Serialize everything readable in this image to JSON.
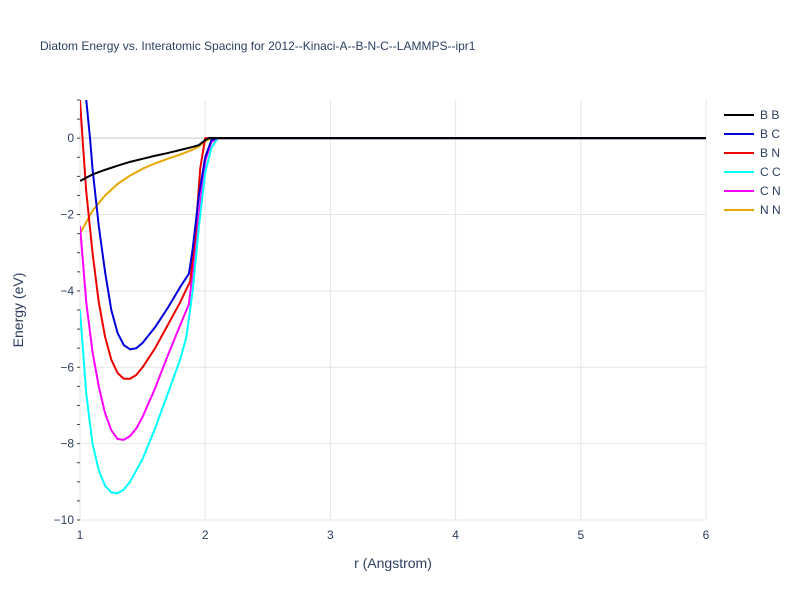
{
  "chart_data": {
    "type": "line",
    "title": "Diatom Energy vs. Interatomic Spacing for 2012--Kinaci-A--B-N-C--LAMMPS--ipr1",
    "xlabel": "r (Angstrom)",
    "ylabel": "Energy (eV)",
    "xlim": [
      1,
      6
    ],
    "ylim": [
      -10,
      1
    ],
    "x_ticks": [
      1,
      2,
      3,
      4,
      5,
      6
    ],
    "y_ticks": [
      -10,
      -8,
      -6,
      -4,
      -2,
      0
    ],
    "x_tick_labels": [
      "1",
      "2",
      "3",
      "4",
      "5",
      "6"
    ],
    "y_tick_labels": [
      "−10",
      "−8",
      "−6",
      "−4",
      "−2",
      "0"
    ],
    "grid": true,
    "legend_position": "right",
    "series": [
      {
        "name": "B B",
        "color": "#000000",
        "points": [
          [
            1.0,
            -1.12
          ],
          [
            1.1,
            -0.95
          ],
          [
            1.2,
            -0.83
          ],
          [
            1.3,
            -0.72
          ],
          [
            1.4,
            -0.62
          ],
          [
            1.5,
            -0.54
          ],
          [
            1.6,
            -0.46
          ],
          [
            1.7,
            -0.39
          ],
          [
            1.8,
            -0.31
          ],
          [
            1.9,
            -0.23
          ],
          [
            1.95,
            -0.18
          ],
          [
            2.0,
            -0.05
          ],
          [
            2.03,
            0.0
          ],
          [
            2.1,
            0.0
          ],
          [
            3.0,
            0.0
          ],
          [
            4.0,
            0.0
          ],
          [
            5.0,
            0.0
          ],
          [
            6.0,
            0.0
          ]
        ]
      },
      {
        "name": "B C",
        "color": "#0000dd",
        "points": [
          [
            1.05,
            1.0
          ],
          [
            1.08,
            0.0
          ],
          [
            1.1,
            -0.8
          ],
          [
            1.15,
            -2.3
          ],
          [
            1.2,
            -3.5
          ],
          [
            1.25,
            -4.5
          ],
          [
            1.3,
            -5.1
          ],
          [
            1.35,
            -5.42
          ],
          [
            1.4,
            -5.53
          ],
          [
            1.45,
            -5.5
          ],
          [
            1.5,
            -5.36
          ],
          [
            1.6,
            -4.95
          ],
          [
            1.7,
            -4.45
          ],
          [
            1.8,
            -3.9
          ],
          [
            1.87,
            -3.55
          ],
          [
            1.9,
            -2.9
          ],
          [
            1.95,
            -1.5
          ],
          [
            2.0,
            -0.5
          ],
          [
            2.05,
            -0.05
          ],
          [
            2.1,
            0.0
          ],
          [
            3.0,
            0.0
          ],
          [
            4.0,
            0.0
          ],
          [
            5.0,
            0.0
          ],
          [
            6.0,
            0.0
          ]
        ]
      },
      {
        "name": "B N",
        "color": "#ee0000",
        "points": [
          [
            1.0,
            1.0
          ],
          [
            1.02,
            0.0
          ],
          [
            1.05,
            -1.4
          ],
          [
            1.1,
            -3.0
          ],
          [
            1.15,
            -4.3
          ],
          [
            1.2,
            -5.2
          ],
          [
            1.25,
            -5.8
          ],
          [
            1.3,
            -6.15
          ],
          [
            1.35,
            -6.3
          ],
          [
            1.4,
            -6.3
          ],
          [
            1.45,
            -6.2
          ],
          [
            1.5,
            -6.0
          ],
          [
            1.6,
            -5.5
          ],
          [
            1.7,
            -4.9
          ],
          [
            1.8,
            -4.3
          ],
          [
            1.88,
            -3.75
          ],
          [
            1.92,
            -2.6
          ],
          [
            1.96,
            -0.8
          ],
          [
            2.0,
            0.0
          ],
          [
            2.1,
            0.0
          ],
          [
            3.0,
            0.0
          ],
          [
            4.0,
            0.0
          ],
          [
            5.0,
            0.0
          ],
          [
            6.0,
            0.0
          ]
        ]
      },
      {
        "name": "C C",
        "color": "#00ffff",
        "points": [
          [
            1.0,
            -4.5
          ],
          [
            1.05,
            -6.7
          ],
          [
            1.1,
            -8.0
          ],
          [
            1.15,
            -8.7
          ],
          [
            1.2,
            -9.1
          ],
          [
            1.25,
            -9.28
          ],
          [
            1.3,
            -9.3
          ],
          [
            1.35,
            -9.2
          ],
          [
            1.4,
            -9.0
          ],
          [
            1.5,
            -8.4
          ],
          [
            1.6,
            -7.6
          ],
          [
            1.7,
            -6.7
          ],
          [
            1.8,
            -5.8
          ],
          [
            1.85,
            -5.2
          ],
          [
            1.9,
            -4.0
          ],
          [
            1.95,
            -2.3
          ],
          [
            2.0,
            -0.9
          ],
          [
            2.05,
            -0.25
          ],
          [
            2.1,
            0.0
          ],
          [
            2.15,
            0.0
          ],
          [
            3.0,
            0.0
          ],
          [
            4.0,
            0.0
          ],
          [
            5.0,
            0.0
          ],
          [
            6.0,
            0.0
          ]
        ]
      },
      {
        "name": "C N",
        "color": "#ff00ff",
        "points": [
          [
            1.0,
            -2.3
          ],
          [
            1.05,
            -4.3
          ],
          [
            1.1,
            -5.6
          ],
          [
            1.15,
            -6.5
          ],
          [
            1.2,
            -7.2
          ],
          [
            1.25,
            -7.65
          ],
          [
            1.3,
            -7.88
          ],
          [
            1.35,
            -7.9
          ],
          [
            1.4,
            -7.8
          ],
          [
            1.45,
            -7.6
          ],
          [
            1.5,
            -7.3
          ],
          [
            1.6,
            -6.55
          ],
          [
            1.7,
            -5.7
          ],
          [
            1.8,
            -4.9
          ],
          [
            1.87,
            -4.35
          ],
          [
            1.9,
            -3.5
          ],
          [
            1.95,
            -2.0
          ],
          [
            2.0,
            -0.6
          ],
          [
            2.05,
            -0.1
          ],
          [
            2.1,
            0.0
          ],
          [
            3.0,
            0.0
          ],
          [
            4.0,
            0.0
          ],
          [
            5.0,
            0.0
          ],
          [
            6.0,
            0.0
          ]
        ]
      },
      {
        "name": "N N",
        "color": "#e6a800",
        "points": [
          [
            1.0,
            -2.5
          ],
          [
            1.05,
            -2.2
          ],
          [
            1.1,
            -1.9
          ],
          [
            1.2,
            -1.5
          ],
          [
            1.3,
            -1.2
          ],
          [
            1.4,
            -0.98
          ],
          [
            1.5,
            -0.8
          ],
          [
            1.6,
            -0.66
          ],
          [
            1.7,
            -0.54
          ],
          [
            1.8,
            -0.43
          ],
          [
            1.9,
            -0.3
          ],
          [
            1.95,
            -0.22
          ],
          [
            2.0,
            -0.08
          ],
          [
            2.05,
            0.0
          ],
          [
            2.1,
            0.0
          ],
          [
            3.0,
            0.0
          ],
          [
            4.0,
            0.0
          ],
          [
            5.0,
            0.0
          ],
          [
            6.0,
            0.0
          ]
        ]
      }
    ]
  }
}
